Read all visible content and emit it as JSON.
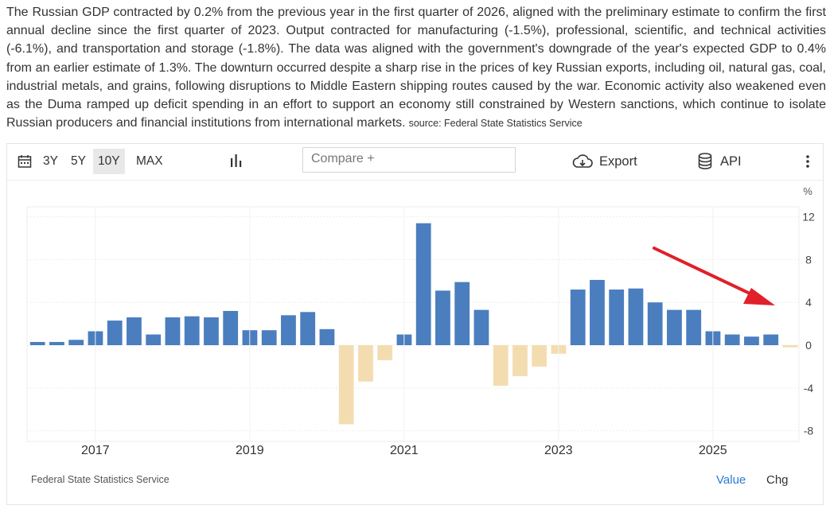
{
  "description": "The Russian GDP contracted by 0.2% from the previous year in the first quarter of 2026, aligned with the preliminary estimate to confirm the first annual decline since the first quarter of 2023. Output contracted for manufacturing (-1.5%), professional, scientific, and technical activities (-6.1%), and transportation and storage (-1.8%). The data was aligned with the government's downgrade of the year's expected GDP to 0.4% from an earlier estimate of 1.3%. The downturn occurred despite a sharp rise in the prices of key Russian exports, including oil, natural gas, coal, industrial metals, and grains, following disruptions to Middle Eastern shipping routes caused by the war. Economic activity also weakened even as the Duma ramped up deficit spending in an effort to support an economy still constrained by Western sanctions, which continue to isolate Russian producers and financial institutions from international markets.",
  "source_inline": "source: Federal State Statistics Service",
  "toolbar": {
    "ranges": [
      "3Y",
      "5Y",
      "10Y",
      "MAX"
    ],
    "active_range": "10Y",
    "compare_placeholder": "Compare +",
    "export_label": "Export",
    "api_label": "API",
    "icons": [
      "calendar-icon",
      "bar-chart-icon",
      "cloud-download-icon",
      "database-icon",
      "more-vertical-icon"
    ]
  },
  "footer": {
    "source": "Federal State Statistics Service",
    "value_label": "Value",
    "chg_label": "Chg"
  },
  "colors": {
    "positive": "#4a7ebf",
    "negative": "#f3ddb0",
    "arrow": "#e0202a",
    "value_link": "#2a7bd4"
  },
  "chart_data": {
    "type": "bar",
    "unit": "%",
    "y_ticks": [
      12,
      8,
      4,
      0,
      -4,
      -8
    ],
    "ylim": [
      -9,
      12.5
    ],
    "x_tick_labels": [
      "2017",
      "2019",
      "2021",
      "2023",
      "2025"
    ],
    "x_tick_positions": [
      "2017 Q1",
      "2019 Q1",
      "2021 Q1",
      "2023 Q1",
      "2025 Q1"
    ],
    "grid": true,
    "annotation": "arrow pointing to latest value",
    "categories": [
      "2016 Q2",
      "2016 Q3",
      "2016 Q4",
      "2017 Q1",
      "2017 Q2",
      "2017 Q3",
      "2017 Q4",
      "2018 Q1",
      "2018 Q2",
      "2018 Q3",
      "2018 Q4",
      "2019 Q1",
      "2019 Q2",
      "2019 Q3",
      "2019 Q4",
      "2020 Q1",
      "2020 Q2",
      "2020 Q3",
      "2020 Q4",
      "2021 Q1",
      "2021 Q2",
      "2021 Q3",
      "2021 Q4",
      "2022 Q1",
      "2022 Q2",
      "2022 Q3",
      "2022 Q4",
      "2023 Q1",
      "2023 Q2",
      "2023 Q3",
      "2023 Q4",
      "2024 Q1",
      "2024 Q2",
      "2024 Q3",
      "2024 Q4",
      "2025 Q1",
      "2025 Q2",
      "2025 Q3",
      "2025 Q4",
      "2026 Q1"
    ],
    "values": [
      0.3,
      0.3,
      0.5,
      1.3,
      2.3,
      2.6,
      1.0,
      2.6,
      2.7,
      2.6,
      3.2,
      1.4,
      1.4,
      2.8,
      3.1,
      1.5,
      -7.4,
      -3.4,
      -1.4,
      1.0,
      11.4,
      5.1,
      5.9,
      3.3,
      -3.8,
      -2.9,
      -2.0,
      -0.8,
      5.2,
      6.1,
      5.2,
      5.3,
      4.0,
      3.3,
      3.3,
      1.3,
      1.0,
      0.8,
      1.0,
      -0.2
    ]
  }
}
